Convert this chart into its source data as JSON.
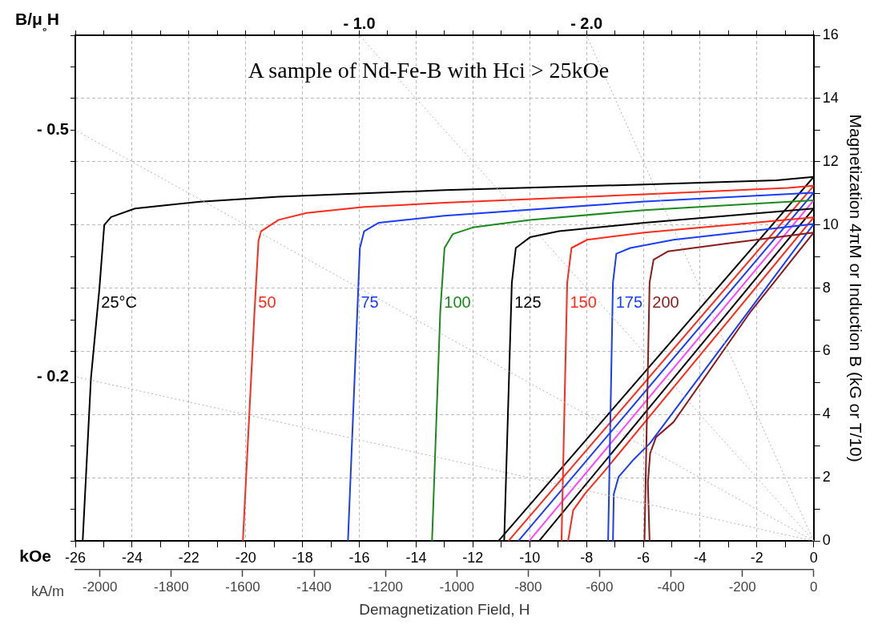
{
  "chart_data": {
    "type": "line",
    "title": "A sample of Nd-Fe-B with Hci > 25kOe",
    "xlabel": "Demagnetization Field, H",
    "x2label": "kA/m",
    "ylabel": "Magnetization 4πM or Induction B (kG or T/10)",
    "annotations": [
      "B/μ₀H",
      "kOe",
      {
        "text": "- 0.5",
        "x": -26,
        "y": 13
      },
      {
        "text": "- 0.2",
        "x": -26,
        "y": 5.2
      },
      {
        "text": "- 1.0",
        "x": -16,
        "y": 16
      },
      {
        "text": "- 2.0",
        "x": -8,
        "y": 16
      }
    ],
    "xlim": [
      -26,
      0
    ],
    "xticks": [
      -26,
      {
        "value": -25,
        "label": null
      },
      -24,
      {
        "value": -23,
        "label": null
      },
      -22,
      {
        "value": -21,
        "label": null
      },
      -20,
      {
        "value": -19,
        "label": null
      },
      -18,
      {
        "value": -17,
        "label": null
      },
      -16,
      {
        "value": -15,
        "label": null
      },
      -14,
      {
        "value": -13,
        "label": null
      },
      -12,
      {
        "value": -11,
        "label": null
      },
      -10,
      {
        "value": -9,
        "label": null
      },
      -8,
      {
        "value": -7,
        "label": null
      },
      -6,
      {
        "value": -5,
        "label": null
      },
      -4,
      {
        "value": -3,
        "label": null
      },
      -2,
      {
        "value": -1,
        "label": null
      },
      0
    ],
    "x2lim": [
      -2069,
      0
    ],
    "x2ticks": [
      -2000,
      -1800,
      -1600,
      -1400,
      -1200,
      -1000,
      -800,
      -600,
      -400,
      -200,
      0
    ],
    "ylim": [
      0,
      16
    ],
    "yticks": [
      0,
      {
        "value": 1,
        "label": null
      },
      2,
      {
        "value": 3,
        "label": null
      },
      4,
      {
        "value": 5,
        "label": null
      },
      6,
      {
        "value": 7,
        "label": null
      },
      8,
      {
        "value": 9,
        "label": null
      },
      10,
      {
        "value": 11,
        "label": null
      },
      12,
      {
        "value": 13,
        "label": null
      },
      14,
      {
        "value": 15,
        "label": null
      },
      16
    ],
    "grid": true,
    "legend": false,
    "marker": "none",
    "series": [
      {
        "line_style": "dotted",
        "color": "#b4b4b4",
        "x": [
          0,
          -26
        ],
        "values": [
          0,
          13
        ]
      },
      {
        "line_style": "dotted",
        "color": "#b4b4b4",
        "x": [
          0,
          -26
        ],
        "values": [
          0,
          5.2
        ]
      },
      {
        "line_style": "dotted",
        "color": "#b4b4b4",
        "x": [
          0,
          -16
        ],
        "values": [
          0,
          16
        ]
      },
      {
        "line_style": "dotted",
        "color": "#b4b4b4",
        "x": [
          0,
          -8
        ],
        "values": [
          0,
          16
        ]
      },
      {
        "name": "25°C",
        "color": "#000000",
        "x": [
          -25.74,
          -25.45,
          -25.15,
          -24.98,
          -24.74,
          -23.9,
          -21.68,
          -18.84,
          -13.0,
          -5.96,
          -1.31,
          0
        ],
        "values": [
          0,
          5.14,
          8,
          10,
          10.25,
          10.52,
          10.73,
          10.89,
          11.1,
          11.28,
          11.41,
          11.52
        ]
      },
      {
        "name": "50",
        "color": "#ff2a1a",
        "x": [
          -20.1,
          -19.69,
          -19.55,
          -19.46,
          -18.84,
          -17.85,
          -15.83,
          -13.0,
          -5.96,
          -0.9,
          0
        ],
        "values": [
          0,
          7.26,
          9.5,
          9.8,
          10.16,
          10.38,
          10.57,
          10.7,
          10.97,
          11.17,
          11.24
        ]
      },
      {
        "name": "75",
        "color": "#1a3cff",
        "x": [
          -16.4,
          -16.07,
          -15.98,
          -15.83,
          -15.31,
          -13.0,
          -5.96,
          0
        ],
        "values": [
          0,
          7.26,
          9.27,
          9.8,
          10.07,
          10.29,
          10.74,
          11.02
        ]
      },
      {
        "name": "100",
        "color": "#1a8a1a",
        "x": [
          -13.44,
          -13.15,
          -13.0,
          -12.71,
          -12.0,
          -9.99,
          -5.96,
          0
        ],
        "values": [
          0,
          7.26,
          9.27,
          9.71,
          9.92,
          10.16,
          10.47,
          10.78
        ]
      },
      {
        "name": "125",
        "color": "#000000",
        "x": [
          -10.9,
          -10.63,
          -10.49,
          -9.99,
          -8.97,
          -5.96,
          0
        ],
        "values": [
          0,
          8.17,
          9.27,
          9.61,
          9.8,
          10.07,
          10.52
        ]
      },
      {
        "name": "150",
        "color": "#ff2a1a",
        "x": [
          -8.88,
          -8.68,
          -8.53,
          -7.98,
          -5.96,
          0
        ],
        "values": [
          0,
          8.17,
          9.27,
          9.53,
          9.76,
          10.24
        ]
      },
      {
        "name": "175",
        "color": "#1a3cff",
        "x": [
          -7.24,
          -7.07,
          -6.95,
          -6.46,
          -4.94,
          0
        ],
        "values": [
          0,
          8.17,
          9.09,
          9.27,
          9.53,
          10.03
        ]
      },
      {
        "name": "200",
        "color": "#8b1a1a",
        "x": [
          -5.96,
          -5.78,
          -5.64,
          -5.14,
          -2.92,
          0
        ],
        "values": [
          0,
          8.17,
          8.9,
          9.16,
          9.43,
          9.76
        ]
      },
      {
        "color": "#000000",
        "x": [
          -11.1,
          0
        ],
        "values": [
          0,
          11.52
        ]
      },
      {
        "color": "#ff2a1a",
        "x": [
          -10.75,
          0
        ],
        "values": [
          0,
          11.24
        ]
      },
      {
        "color": "#1a3cff",
        "x": [
          -10.4,
          0
        ],
        "values": [
          0,
          11.02
        ]
      },
      {
        "color": "#ff44ff",
        "x": [
          -10.02,
          0
        ],
        "values": [
          0,
          10.78
        ]
      },
      {
        "color": "#000000",
        "x": [
          -9.67,
          0
        ],
        "values": [
          0,
          10.52
        ]
      },
      {
        "color": "#ff2a1a",
        "x": [
          -8.65,
          -8.47,
          -8.06,
          -7.36,
          0
        ],
        "values": [
          0,
          0.97,
          1.49,
          2.22,
          10.24
        ]
      },
      {
        "color": "#1a3cff",
        "x": [
          -7.07,
          -7.04,
          -6.87,
          -6.34,
          -5.76,
          0
        ],
        "values": [
          0,
          1.49,
          2.03,
          2.58,
          3.1,
          10.03
        ]
      },
      {
        "color": "#8b1a1a",
        "x": [
          -5.78,
          -5.84,
          -5.76,
          -5.55,
          -4.94,
          -2.22,
          0
        ],
        "values": [
          0,
          1.85,
          2.77,
          3.29,
          3.76,
          7.26,
          9.76
        ]
      }
    ]
  }
}
